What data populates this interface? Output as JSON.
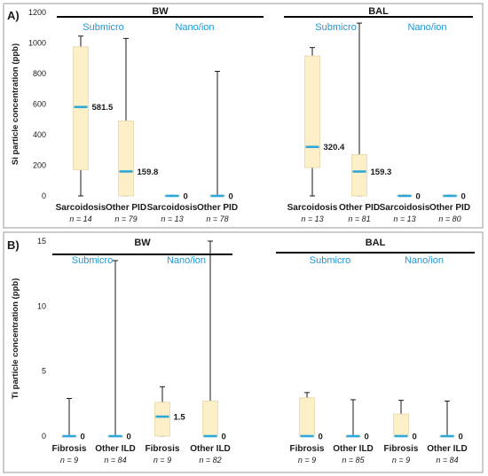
{
  "colors": {
    "box_fill": "#fdf0c9",
    "box_stroke": "#e4d6a8",
    "median": "#2ea8d8",
    "group_label": "#2196d3",
    "text": "#1a1a1a",
    "frame": "#9a9a9a"
  },
  "chart_data": [
    {
      "type": "box",
      "panel_label": "A)",
      "ylabel": "Si particle concentration (ppb)",
      "ylim": [
        0,
        1200
      ],
      "yticks": [
        0,
        200,
        400,
        600,
        800,
        1000,
        1200
      ],
      "sections": [
        {
          "label": "BW",
          "groups": [
            "Submicro",
            "Nano/ion"
          ]
        },
        {
          "label": "BAL",
          "groups": [
            "Submicro",
            "Nano/ion"
          ]
        }
      ],
      "boxes": [
        {
          "category": "Sarcoidosis",
          "n": "n = 14",
          "min": 0,
          "q1": 170,
          "median": 581.5,
          "q3": 975,
          "max": 1045,
          "median_label": "581.5"
        },
        {
          "category": "Other PID",
          "n": "n = 79",
          "min": 0,
          "q1": 0,
          "median": 159.8,
          "q3": 490,
          "max": 1030,
          "median_label": "159.8"
        },
        {
          "category": "Sarcoidosis",
          "n": "n = 13",
          "min": 0,
          "q1": 0,
          "median": 0,
          "q3": 5,
          "max": 5,
          "median_label": "0"
        },
        {
          "category": "Other PID",
          "n": "n = 78",
          "min": 0,
          "q1": 0,
          "median": 0,
          "q3": 5,
          "max": 815,
          "median_label": "0"
        },
        {
          "category": "Sarcoidosis",
          "n": "n = 13",
          "min": 0,
          "q1": 185,
          "median": 320.4,
          "q3": 915,
          "max": 970,
          "median_label": "320.4"
        },
        {
          "category": "Other PID",
          "n": "n = 81",
          "min": 0,
          "q1": 0,
          "median": 159.3,
          "q3": 270,
          "max": 1130,
          "median_label": "159.3"
        },
        {
          "category": "Sarcoidosis",
          "n": "n = 13",
          "min": 0,
          "q1": 0,
          "median": 0,
          "q3": 5,
          "max": 5,
          "median_label": "0"
        },
        {
          "category": "Other PID",
          "n": "n = 80",
          "min": 0,
          "q1": 0,
          "median": 0,
          "q3": 5,
          "max": 5,
          "median_label": "0"
        }
      ]
    },
    {
      "type": "box",
      "panel_label": "B)",
      "ylabel": "Ti particle concentration (ppb)",
      "ylim": [
        0,
        15
      ],
      "yticks": [
        0,
        5,
        10,
        15
      ],
      "sections": [
        {
          "label": "BW",
          "groups": [
            "Submicro",
            "Nano/ion"
          ]
        },
        {
          "label": "BAL",
          "groups": [
            "Submicro",
            "Nano/ion"
          ]
        }
      ],
      "boxes": [
        {
          "category": "Fibrosis",
          "n": "n = 9",
          "min": 0,
          "q1": 0,
          "median": 0,
          "q3": 0,
          "max": 2.9,
          "median_label": "0"
        },
        {
          "category": "Other ILD",
          "n": "n = 84",
          "min": 0,
          "q1": 0,
          "median": 0,
          "q3": 0,
          "max": 13.5,
          "median_label": "0"
        },
        {
          "category": "Fibrosis",
          "n": "n = 9",
          "min": 0,
          "q1": 0,
          "median": 1.5,
          "q3": 2.6,
          "max": 3.8,
          "median_label": "1.5"
        },
        {
          "category": "Other ILD",
          "n": "n = 82",
          "min": 0,
          "q1": 0,
          "median": 0,
          "q3": 2.7,
          "max": 15,
          "median_label": "0"
        },
        {
          "category": "Fibrosis",
          "n": "n = 9",
          "min": 0,
          "q1": 0,
          "median": 0,
          "q3": 2.95,
          "max": 3.35,
          "median_label": "0"
        },
        {
          "category": "Other ILD",
          "n": "n = 85",
          "min": 0,
          "q1": 0,
          "median": 0,
          "q3": 0,
          "max": 2.8,
          "median_label": "0"
        },
        {
          "category": "Fibrosis",
          "n": "n = 9",
          "min": 0,
          "q1": 0,
          "median": 0,
          "q3": 1.7,
          "max": 2.75,
          "median_label": "0"
        },
        {
          "category": "Other ILD",
          "n": "n = 84",
          "min": 0,
          "q1": 0,
          "median": 0,
          "q3": 0,
          "max": 2.7,
          "median_label": "0"
        }
      ]
    }
  ]
}
